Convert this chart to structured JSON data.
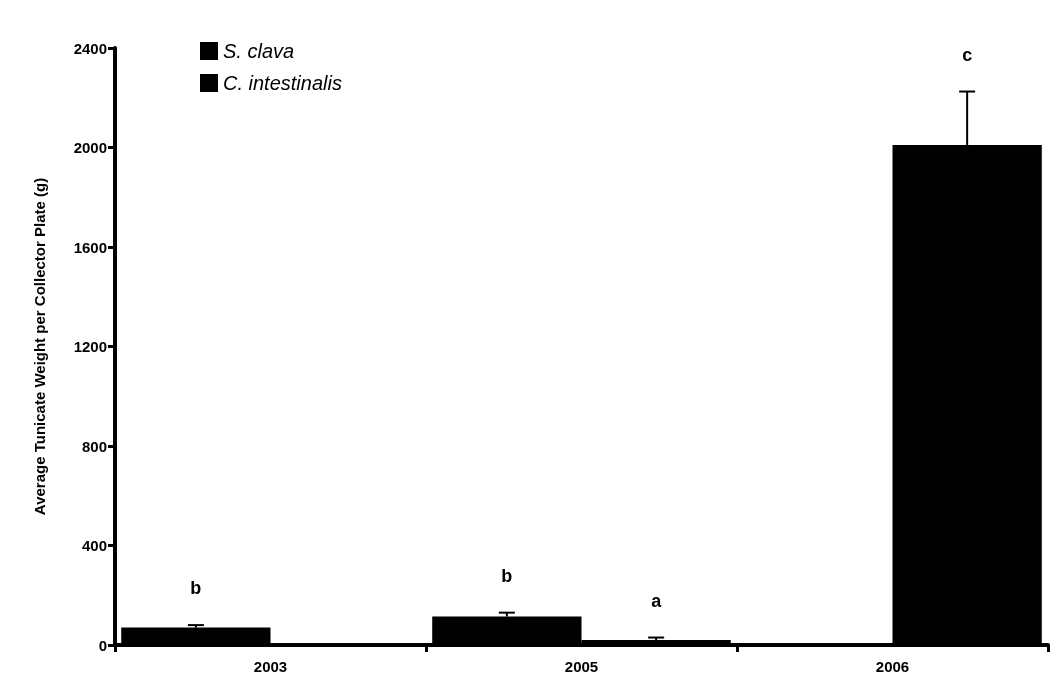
{
  "chart_data": {
    "type": "bar",
    "ylabel": "Average Tunicate Weight per Collector Plate (g)",
    "categories": [
      "2003",
      "2005",
      "2006"
    ],
    "series": [
      {
        "name": "S. clava",
        "color": "#000000",
        "values": [
          70,
          115,
          0
        ],
        "errors": [
          10,
          15,
          null
        ]
      },
      {
        "name": "C. intestinalis",
        "color": "#000000",
        "values": [
          5,
          20,
          2010
        ],
        "errors": [
          null,
          10,
          215
        ]
      }
    ],
    "ylim": [
      0,
      2400
    ],
    "yticks": [
      0,
      400,
      800,
      1200,
      1600,
      2000,
      2400
    ],
    "grid": false,
    "legend": "top left",
    "annotations": [
      "b",
      "b",
      "a",
      "c"
    ]
  }
}
